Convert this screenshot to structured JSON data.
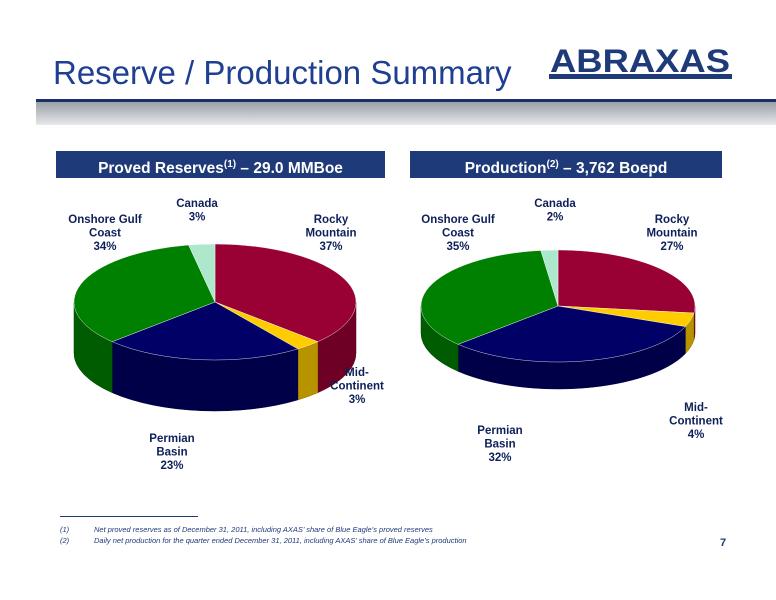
{
  "slide": {
    "title": "Reserve / Production Summary",
    "logo_text": "ABRAXAS",
    "page_number": "7"
  },
  "footnotes": [
    {
      "marker": "(1)",
      "text": "Net proved reserves as of December 31, 2011, including AXAS’ share of Blue Eagle’s proved reserves"
    },
    {
      "marker": "(2)",
      "text": "Daily net production for the quarter ended December 31, 2011, including AXAS’ share of Blue Eagle’s production"
    }
  ],
  "colors": {
    "rocky_mountain": "#990033",
    "mid_continent": "#ffcc00",
    "permian_basin": "#000066",
    "onshore_gulf_coast": "#008000",
    "canada": "#aee8cc",
    "header_bg": "#1f3a78",
    "title": "#1f3f93"
  },
  "chart_data": [
    {
      "type": "pie",
      "title_main": "Proved Reserves",
      "title_sup": "(1)",
      "title_rest": " – 29.0 MMBoe",
      "slices": [
        {
          "label": [
            "Rocky",
            "Mountain"
          ],
          "percent_label": "37%",
          "value": 37
        },
        {
          "label": [
            "Mid-",
            "Continent"
          ],
          "percent_label": "3%",
          "value": 3
        },
        {
          "label": [
            "Permian",
            "Basin"
          ],
          "percent_label": "23%",
          "value": 23
        },
        {
          "label": [
            "Onshore Gulf",
            "Coast"
          ],
          "percent_label": "34%",
          "value": 34
        },
        {
          "label": [
            "Canada"
          ],
          "percent_label": "3%",
          "value": 3
        }
      ]
    },
    {
      "type": "pie",
      "title_main": "Production",
      "title_sup": "(2)",
      "title_rest": " – 3,762 Boepd",
      "slices": [
        {
          "label": [
            "Rocky",
            "Mountain"
          ],
          "percent_label": "27%",
          "value": 27
        },
        {
          "label": [
            "Mid-",
            "Continent"
          ],
          "percent_label": "4%",
          "value": 4
        },
        {
          "label": [
            "Permian",
            "Basin"
          ],
          "percent_label": "32%",
          "value": 32
        },
        {
          "label": [
            "Onshore Gulf",
            "Coast"
          ],
          "percent_label": "35%",
          "value": 35
        },
        {
          "label": [
            "Canada"
          ],
          "percent_label": "2%",
          "value": 2
        }
      ]
    }
  ]
}
